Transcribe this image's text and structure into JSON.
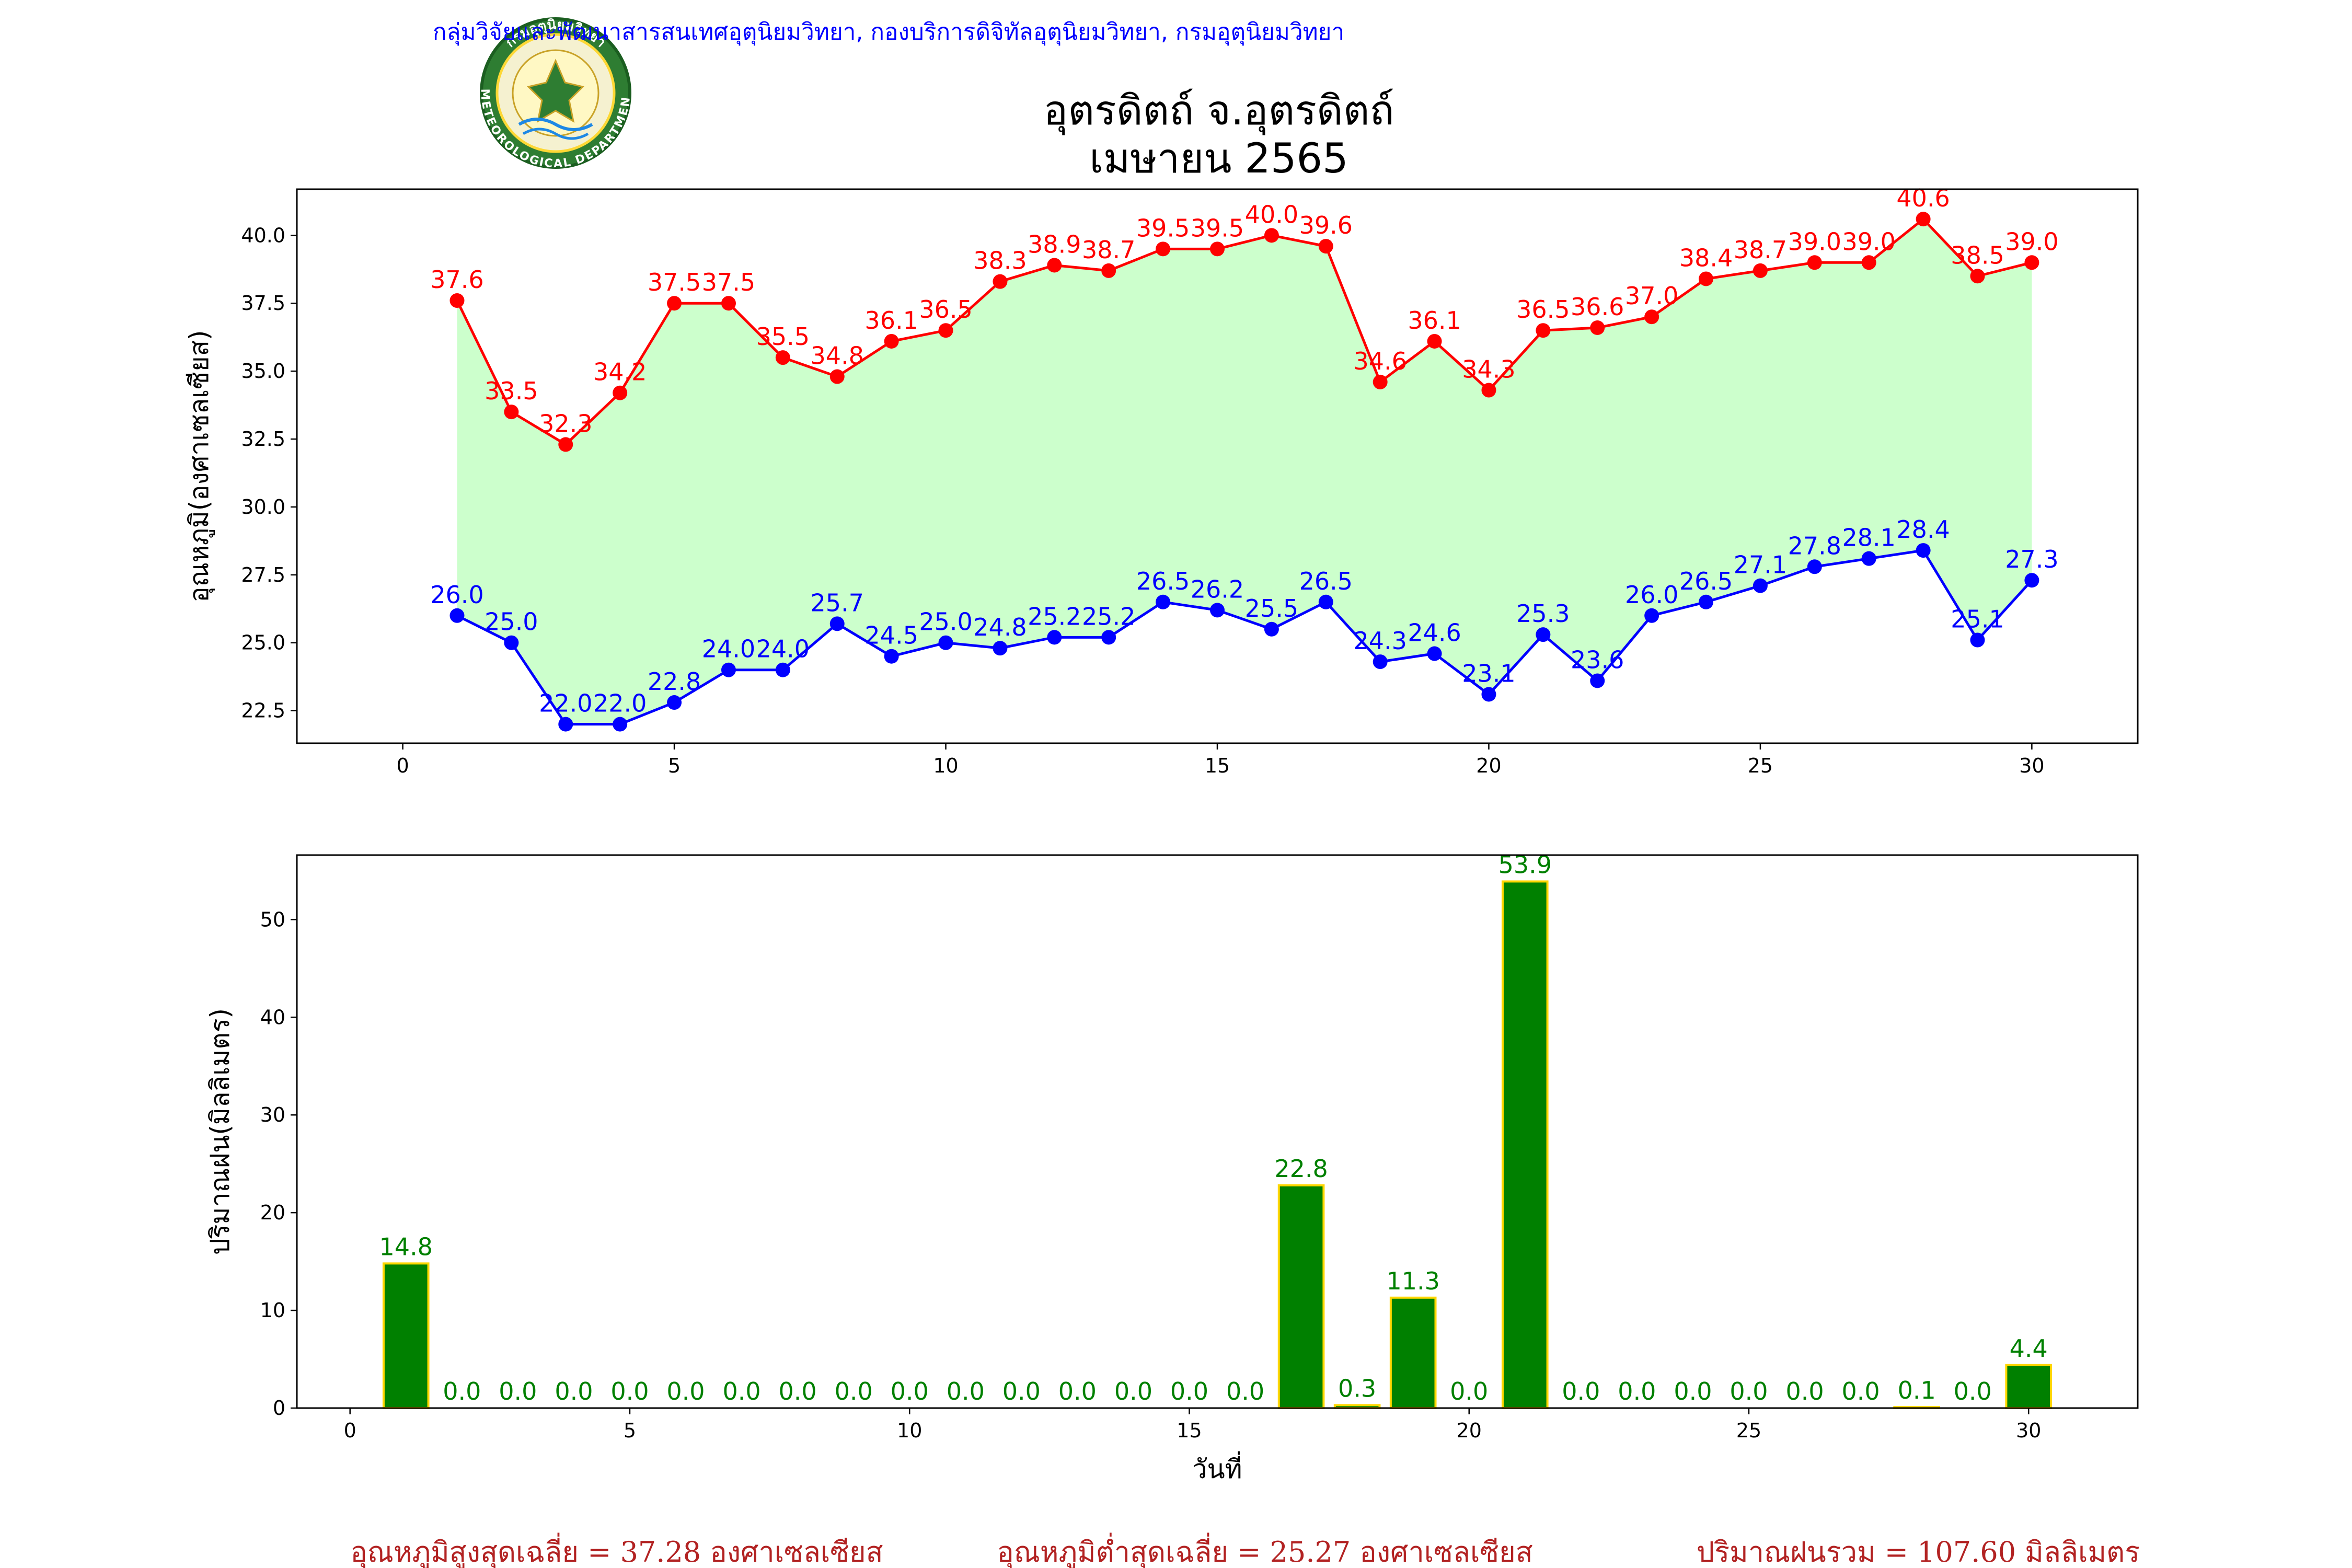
{
  "header": {
    "agency": "กลุ่มวิจัยและพัฒนาสารสนเทศอุตุนิยมวิทยา, กองบริการดิจิทัลอุตุนิยมวิทยา, กรมอุตุนิยมวิทยา",
    "agency_color": "#0000ff",
    "title_line1": "อุตรดิตถ์ จ.อุตรดิตถ์",
    "title_line2": "เมษายน 2565",
    "logo": {
      "icon": "meteorological-department-seal-icon",
      "top_text": "กรมอุตุนิยมวิทยา",
      "bottom_text": "METEOROLOGICAL DEPARTMENT"
    }
  },
  "chart_data": [
    {
      "type": "line",
      "ylabel": "อุณหภูมิ(องศาเซลเซียส)",
      "xlabel": "",
      "x": [
        1,
        2,
        3,
        4,
        5,
        6,
        7,
        8,
        9,
        10,
        11,
        12,
        13,
        14,
        15,
        16,
        17,
        18,
        19,
        20,
        21,
        22,
        23,
        24,
        25,
        26,
        27,
        28,
        29,
        30
      ],
      "xlim": [
        -1.95,
        31.95
      ],
      "ylim": [
        21.3,
        41.7
      ],
      "xticks": [
        0,
        5,
        10,
        15,
        20,
        25,
        30
      ],
      "yticks": [
        22.5,
        25.0,
        27.5,
        30.0,
        32.5,
        35.0,
        37.5,
        40.0
      ],
      "fill_between_color": "#ccffcc",
      "grid": false,
      "series": [
        {
          "key": "max",
          "color": "#ff0000",
          "values": [
            37.6,
            33.5,
            32.3,
            34.2,
            37.5,
            37.5,
            35.5,
            34.8,
            36.1,
            36.5,
            38.3,
            38.9,
            38.7,
            39.5,
            39.5,
            40.0,
            39.6,
            34.6,
            36.1,
            34.3,
            36.5,
            36.6,
            37.0,
            38.4,
            38.7,
            39.0,
            39.0,
            40.6,
            38.5,
            39.0
          ]
        },
        {
          "key": "min",
          "color": "#0000ff",
          "values": [
            26.0,
            25.0,
            22.0,
            22.0,
            22.8,
            24.0,
            24.0,
            25.7,
            24.5,
            25.0,
            24.8,
            25.2,
            25.2,
            26.5,
            26.2,
            25.5,
            26.5,
            24.3,
            24.6,
            23.1,
            25.3,
            23.6,
            26.0,
            26.5,
            27.1,
            27.8,
            28.1,
            28.4,
            25.1,
            27.3
          ]
        }
      ]
    },
    {
      "type": "bar",
      "ylabel": "ปริมาณฝน(มิลลิเมตร)",
      "xlabel": "วันที่",
      "x": [
        1,
        2,
        3,
        4,
        5,
        6,
        7,
        8,
        9,
        10,
        11,
        12,
        13,
        14,
        15,
        16,
        17,
        18,
        19,
        20,
        21,
        22,
        23,
        24,
        25,
        26,
        27,
        28,
        29,
        30
      ],
      "xlim": [
        -0.95,
        31.95
      ],
      "ylim": [
        0,
        56.6
      ],
      "xticks": [
        0,
        5,
        10,
        15,
        20,
        25,
        30
      ],
      "yticks": [
        0,
        10,
        20,
        30,
        40,
        50
      ],
      "bar_color": "#008000",
      "bar_edge_color": "#ffd700",
      "label_color": "#008000",
      "grid": false,
      "values": [
        14.8,
        0.0,
        0.0,
        0.0,
        0.0,
        0.0,
        0.0,
        0.0,
        0.0,
        0.0,
        0.0,
        0.0,
        0.0,
        0.0,
        0.0,
        0.0,
        22.8,
        0.3,
        11.3,
        0.0,
        53.9,
        0.0,
        0.0,
        0.0,
        0.0,
        0.0,
        0.0,
        0.1,
        0.0,
        4.4
      ]
    }
  ],
  "footer": {
    "color": "#b22222",
    "avg_max": "อุณหภูมิสูงสุดเฉลี่ย = 37.28 องศาเซลเซียส",
    "avg_min": "อุณหภูมิต่ำสุดเฉลี่ย = 25.27 องศาเซลเซียส",
    "total_rain": "ปริมาณฝนรวม = 107.60 มิลลิเมตร"
  }
}
